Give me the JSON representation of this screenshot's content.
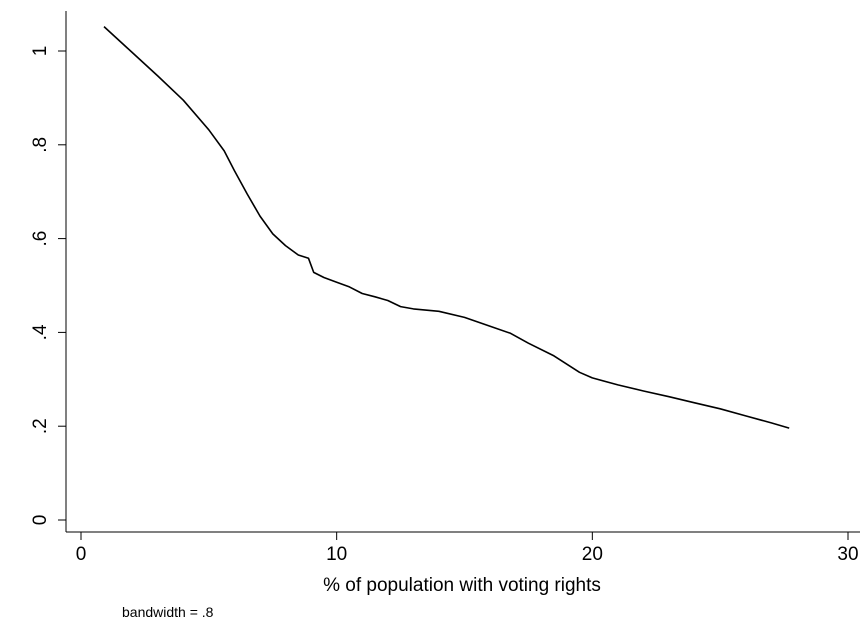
{
  "chart_data": {
    "type": "line",
    "title": "",
    "xlabel": "% of population with voting rights",
    "ylabel": "",
    "note": "bandwidth = .8",
    "xlim": [
      0,
      30
    ],
    "ylim": [
      0,
      1.1
    ],
    "x_ticks": [
      0,
      10,
      20,
      30
    ],
    "x_tick_labels": [
      "0",
      "10",
      "20",
      "30"
    ],
    "y_ticks": [
      0,
      0.2,
      0.4,
      0.6,
      0.8,
      1
    ],
    "y_tick_labels": [
      "0",
      ".2",
      ".4",
      ".6",
      ".8",
      "1"
    ],
    "grid": false,
    "legend": "none",
    "line_color": "#000000",
    "series": [
      {
        "x": [
          0.9,
          2.0,
          3.0,
          4.0,
          5.0,
          5.6,
          6.0,
          6.5,
          7.0,
          7.5,
          8.0,
          8.5,
          8.9,
          9.1,
          9.5,
          10.0,
          10.5,
          11.0,
          11.5,
          12.0,
          12.5,
          13.0,
          14.0,
          15.0,
          16.0,
          16.8,
          17.5,
          18.5,
          19.5,
          20.0,
          21.0,
          22.0,
          23.0,
          24.0,
          25.0,
          26.0,
          27.0,
          27.7
        ],
        "y": [
          1.052,
          0.997,
          0.947,
          0.895,
          0.832,
          0.787,
          0.745,
          0.695,
          0.648,
          0.61,
          0.585,
          0.565,
          0.558,
          0.528,
          0.517,
          0.507,
          0.497,
          0.483,
          0.476,
          0.468,
          0.455,
          0.45,
          0.445,
          0.432,
          0.413,
          0.398,
          0.377,
          0.35,
          0.315,
          0.303,
          0.288,
          0.275,
          0.263,
          0.25,
          0.237,
          0.222,
          0.207,
          0.196
        ]
      }
    ]
  }
}
